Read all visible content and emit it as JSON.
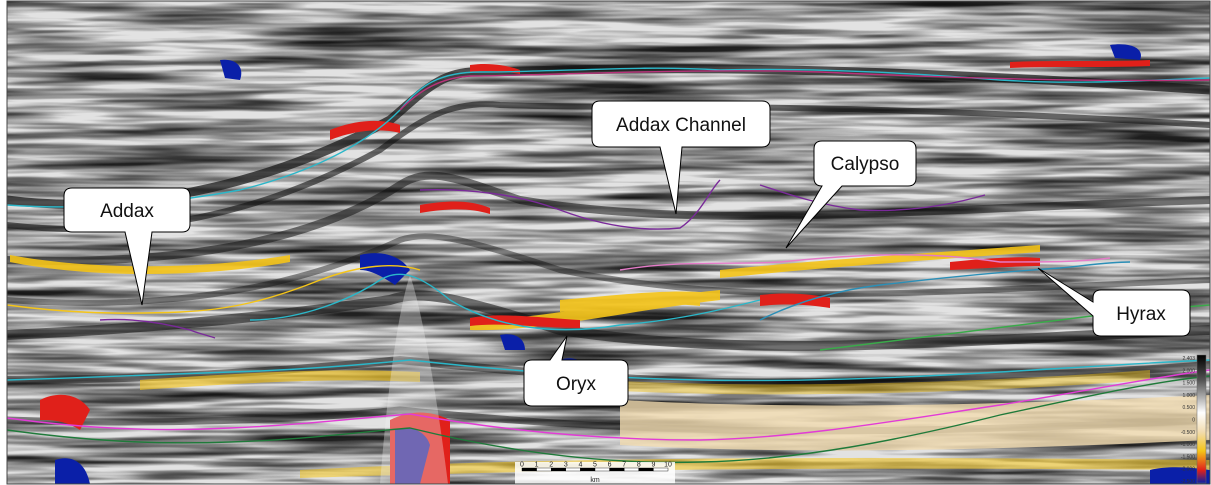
{
  "callouts": {
    "addax": "Addax",
    "addax_channel": "Addax Channel",
    "calypso": "Calypso",
    "hyrax": "Hyrax",
    "oryx": "Oryx"
  },
  "scale_bar": {
    "ticks": [
      "0",
      "1",
      "2",
      "3",
      "4",
      "5",
      "6",
      "7",
      "8",
      "9",
      "10"
    ],
    "unit": "km"
  },
  "color_bar": {
    "labels": [
      "2.403",
      "2.000",
      "1.500",
      "1.000",
      "0.500",
      "0",
      "-0.500",
      "-1.000",
      "-1.500",
      "-2.000",
      "-2.500"
    ]
  },
  "colors": {
    "seismic_dark": "#1a1a1a",
    "seismic_light": "#e6e6e6",
    "amplitude_red": "#e0201a",
    "amplitude_yellow": "#f5c518",
    "amplitude_blue": "#0a1fa8",
    "horizon_cyan": "#2bb7c9",
    "horizon_magenta": "#e23cd6",
    "horizon_green": "#1f7a3a",
    "horizon_purple": "#7a2a9a"
  }
}
